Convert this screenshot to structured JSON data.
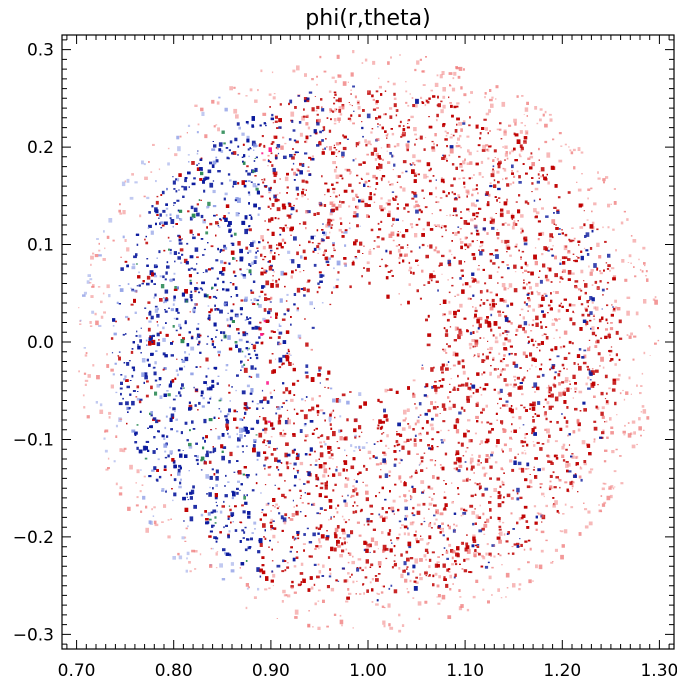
{
  "chart_data": {
    "type": "scatter",
    "title": "phi(r,theta)",
    "xlabel": "",
    "ylabel": "",
    "xlim": [
      0.685,
      1.315
    ],
    "ylim": [
      -0.315,
      0.315
    ],
    "x_ticks": [
      "0.70",
      "0.80",
      "0.90",
      "1.00",
      "1.10",
      "1.20",
      "1.30"
    ],
    "y_ticks": [
      "-0.3",
      "-0.2",
      "-0.1",
      "0.0",
      "0.1",
      "0.2",
      "0.3"
    ],
    "x_tick_values": [
      0.7,
      0.8,
      0.9,
      1.0,
      1.1,
      1.2,
      1.3
    ],
    "y_tick_values": [
      -0.3,
      -0.2,
      -0.1,
      0.0,
      0.1,
      0.2,
      0.3
    ],
    "grid": false,
    "field": {
      "shape": "annulus",
      "center": [
        1.0,
        0.0
      ],
      "inner_radius": 0.05,
      "outer_radius": 0.3,
      "negative_region": "left (blue)",
      "positive_region": "right and center ring (red)",
      "peak_region": "magenta/pink near x=0.82-0.88, y=-0.12 to 0.2"
    },
    "colors": {
      "positive_strong": "#c00000",
      "positive_weak": "#f08080",
      "negative_strong": "#0a1a9c",
      "negative_weak": "#8f9ee6",
      "peak": "#ff1a8c",
      "green_specks": "#2e8b57"
    }
  }
}
